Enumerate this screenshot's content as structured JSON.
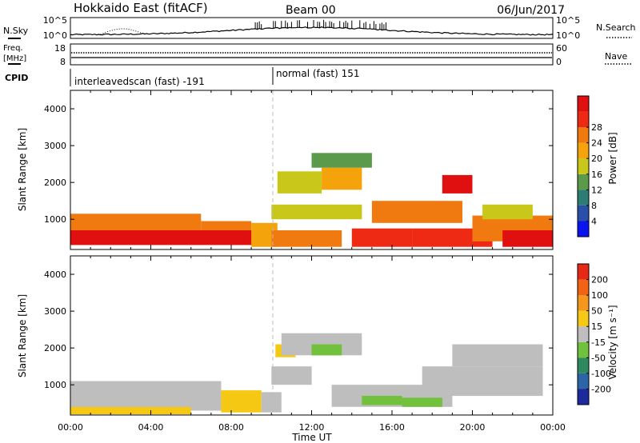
{
  "header": {
    "title": "Hokkaido East (fitACF)",
    "beam": "Beam 00",
    "date": "06/Jun/2017"
  },
  "noise_panel": {
    "left_label": "N.Sky",
    "right_label": "N.Search",
    "left_ticks": [
      "10^5",
      "10^0"
    ],
    "right_ticks": [
      "10^5",
      "10^0"
    ]
  },
  "freq_panel": {
    "left_label_1": "Freq.",
    "left_label_2": "[MHz]",
    "right_label": "Nave",
    "left_ticks": [
      "18",
      "8"
    ],
    "right_ticks": [
      "60",
      "0"
    ]
  },
  "cpid_panel": {
    "label": "CPID",
    "modes": [
      {
        "name": "interleavedscan (fast) -191",
        "start_hour": 0,
        "end_hour": 10
      },
      {
        "name": "normal (fast) 151",
        "start_hour": 10,
        "end_hour": 24
      }
    ]
  },
  "axes": {
    "xlabel": "Time UT",
    "x_ticks": [
      "00:00",
      "04:00",
      "08:00",
      "12:00",
      "16:00",
      "20:00",
      "00:00"
    ],
    "ylabel": "Slant Range [km]",
    "y_ticks": [
      "1000",
      "2000",
      "3000",
      "4000"
    ]
  },
  "power_colorbar": {
    "label": "Power [dB]",
    "ticks": [
      "4",
      "8",
      "12",
      "16",
      "20",
      "24",
      "28"
    ],
    "colors": [
      "#0a14f0",
      "#2a4fa8",
      "#2e7d74",
      "#5b9a4a",
      "#c9c71a",
      "#f5a30a",
      "#f07a10",
      "#ee2a14",
      "#e01010"
    ]
  },
  "velocity_colorbar": {
    "label": "Velocity [m s⁻¹]",
    "ticks": [
      "200",
      "100",
      "50",
      "15",
      "-15",
      "-50",
      "-100",
      "-200"
    ],
    "colors": [
      "#1d2a9c",
      "#2d64a8",
      "#2e8a5e",
      "#72c13c",
      "#bebebe",
      "#f5c814",
      "#f5961e",
      "#f06414",
      "#e62814"
    ]
  },
  "chart_data": [
    {
      "type": "heatmap",
      "title": "",
      "xlabel": "Time UT",
      "ylabel": "Slant Range [km]",
      "xlim": [
        0,
        24
      ],
      "ylim": [
        180,
        4500
      ],
      "colorbar": "Power [dB]",
      "colorbar_range": [
        0,
        30
      ],
      "regions": [
        {
          "t0": 0,
          "t1": 9.5,
          "r0": 300,
          "r1": 700,
          "value": 30
        },
        {
          "t0": 0,
          "t1": 6.5,
          "r0": 700,
          "r1": 1150,
          "value": 22
        },
        {
          "t0": 6.5,
          "t1": 9.0,
          "r0": 700,
          "r1": 950,
          "value": 22
        },
        {
          "t0": 9.0,
          "t1": 10.3,
          "r0": 250,
          "r1": 900,
          "value": 18
        },
        {
          "t0": 10.0,
          "t1": 13.5,
          "r0": 250,
          "r1": 700,
          "value": 20
        },
        {
          "t0": 10.0,
          "t1": 14.5,
          "r0": 1000,
          "r1": 1400,
          "value": 14
        },
        {
          "t0": 10.3,
          "t1": 12.5,
          "r0": 1700,
          "r1": 2300,
          "value": 16
        },
        {
          "t0": 12.5,
          "t1": 14.5,
          "r0": 1800,
          "r1": 2400,
          "value": 19
        },
        {
          "t0": 12.0,
          "t1": 15.0,
          "r0": 2400,
          "r1": 2800,
          "value": 13
        },
        {
          "t0": 14.0,
          "t1": 17.0,
          "r0": 250,
          "r1": 750,
          "value": 24
        },
        {
          "t0": 15.0,
          "t1": 19.5,
          "r0": 900,
          "r1": 1500,
          "value": 20
        },
        {
          "t0": 17.0,
          "t1": 21.0,
          "r0": 250,
          "r1": 750,
          "value": 25
        },
        {
          "t0": 18.5,
          "t1": 20.0,
          "r0": 1700,
          "r1": 2200,
          "value": 27
        },
        {
          "t0": 20.0,
          "t1": 24.0,
          "r0": 400,
          "r1": 1100,
          "value": 23
        },
        {
          "t0": 20.5,
          "t1": 23.0,
          "r0": 1000,
          "r1": 1400,
          "value": 16
        },
        {
          "t0": 21.5,
          "t1": 24.0,
          "r0": 250,
          "r1": 700,
          "value": 28
        }
      ]
    },
    {
      "type": "heatmap",
      "title": "",
      "xlabel": "Time UT",
      "ylabel": "Slant Range [km]",
      "xlim": [
        0,
        24
      ],
      "ylim": [
        180,
        4500
      ],
      "colorbar": "Velocity [m s⁻¹]",
      "colorbar_range": [
        -250,
        250
      ],
      "regions": [
        {
          "t0": 0,
          "t1": 7.5,
          "r0": 300,
          "r1": 1100,
          "value": 0
        },
        {
          "t0": 0,
          "t1": 6.0,
          "r0": 200,
          "r1": 400,
          "value": 30
        },
        {
          "t0": 7.5,
          "t1": 9.5,
          "r0": 250,
          "r1": 850,
          "value": 30
        },
        {
          "t0": 9.5,
          "t1": 10.5,
          "r0": 250,
          "r1": 800,
          "value": 0
        },
        {
          "t0": 10.0,
          "t1": 12.0,
          "r0": 1000,
          "r1": 1500,
          "value": 0
        },
        {
          "t0": 10.2,
          "t1": 11.2,
          "r0": 1750,
          "r1": 2100,
          "value": 30
        },
        {
          "t0": 10.5,
          "t1": 14.5,
          "r0": 1800,
          "r1": 2400,
          "value": 0
        },
        {
          "t0": 12.0,
          "t1": 13.5,
          "r0": 1800,
          "r1": 2100,
          "value": -30
        },
        {
          "t0": 13.0,
          "t1": 19.0,
          "r0": 400,
          "r1": 1000,
          "value": 0
        },
        {
          "t0": 14.5,
          "t1": 16.5,
          "r0": 450,
          "r1": 700,
          "value": -40
        },
        {
          "t0": 16.5,
          "t1": 18.5,
          "r0": 400,
          "r1": 650,
          "value": -60
        },
        {
          "t0": 17.5,
          "t1": 23.5,
          "r0": 700,
          "r1": 1500,
          "value": 0
        },
        {
          "t0": 19.0,
          "t1": 23.5,
          "r0": 1500,
          "r1": 2100,
          "value": 0
        }
      ]
    }
  ]
}
